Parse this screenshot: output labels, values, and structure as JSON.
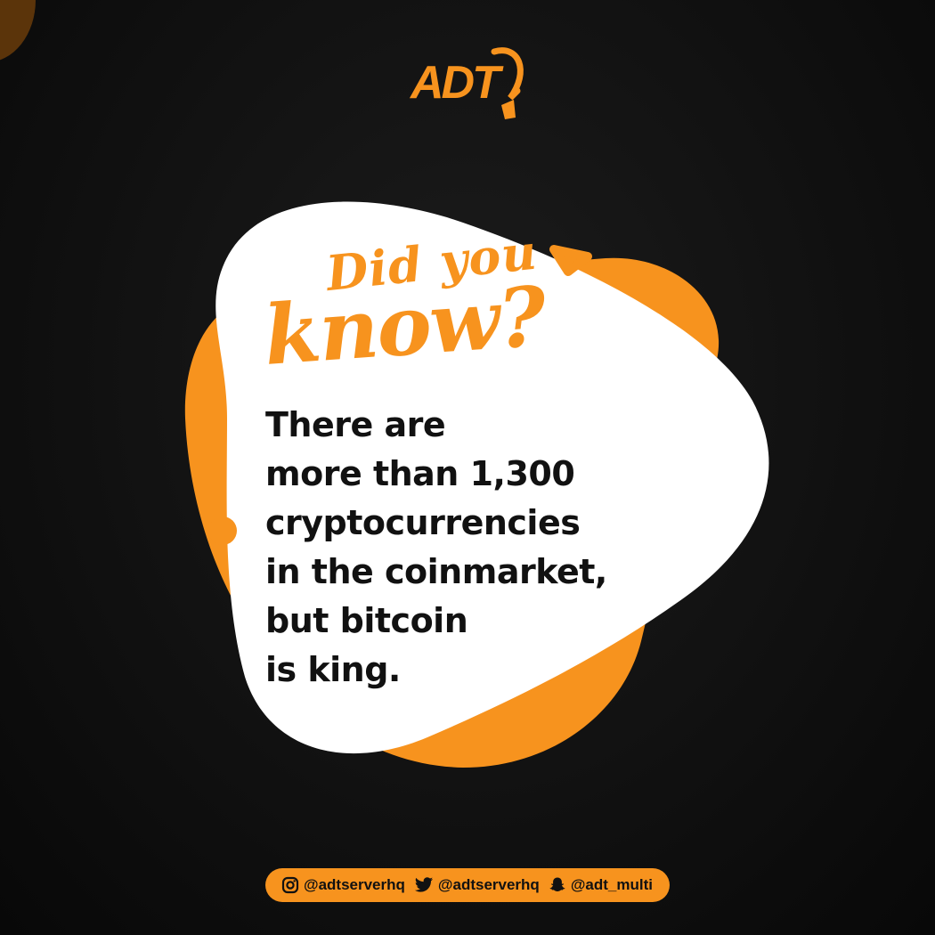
{
  "brand": {
    "logo_text": "ADT",
    "accent": "#f7931e",
    "background": "#111111"
  },
  "headline": {
    "line1": "Did you",
    "line2": "know?"
  },
  "fact": {
    "line1": "There are",
    "line2": "more than 1,300",
    "line3": "cryptocurrencies",
    "line4": "in the coinmarket,",
    "line5_prefix": "but ",
    "line5_bold": "bitcoin",
    "line6": "is king."
  },
  "socials": [
    {
      "icon": "instagram-icon",
      "handle": "@adtserverhq"
    },
    {
      "icon": "twitter-icon",
      "handle": "@adtserverhq"
    },
    {
      "icon": "snapchat-icon",
      "handle": "@adt_multi"
    }
  ]
}
